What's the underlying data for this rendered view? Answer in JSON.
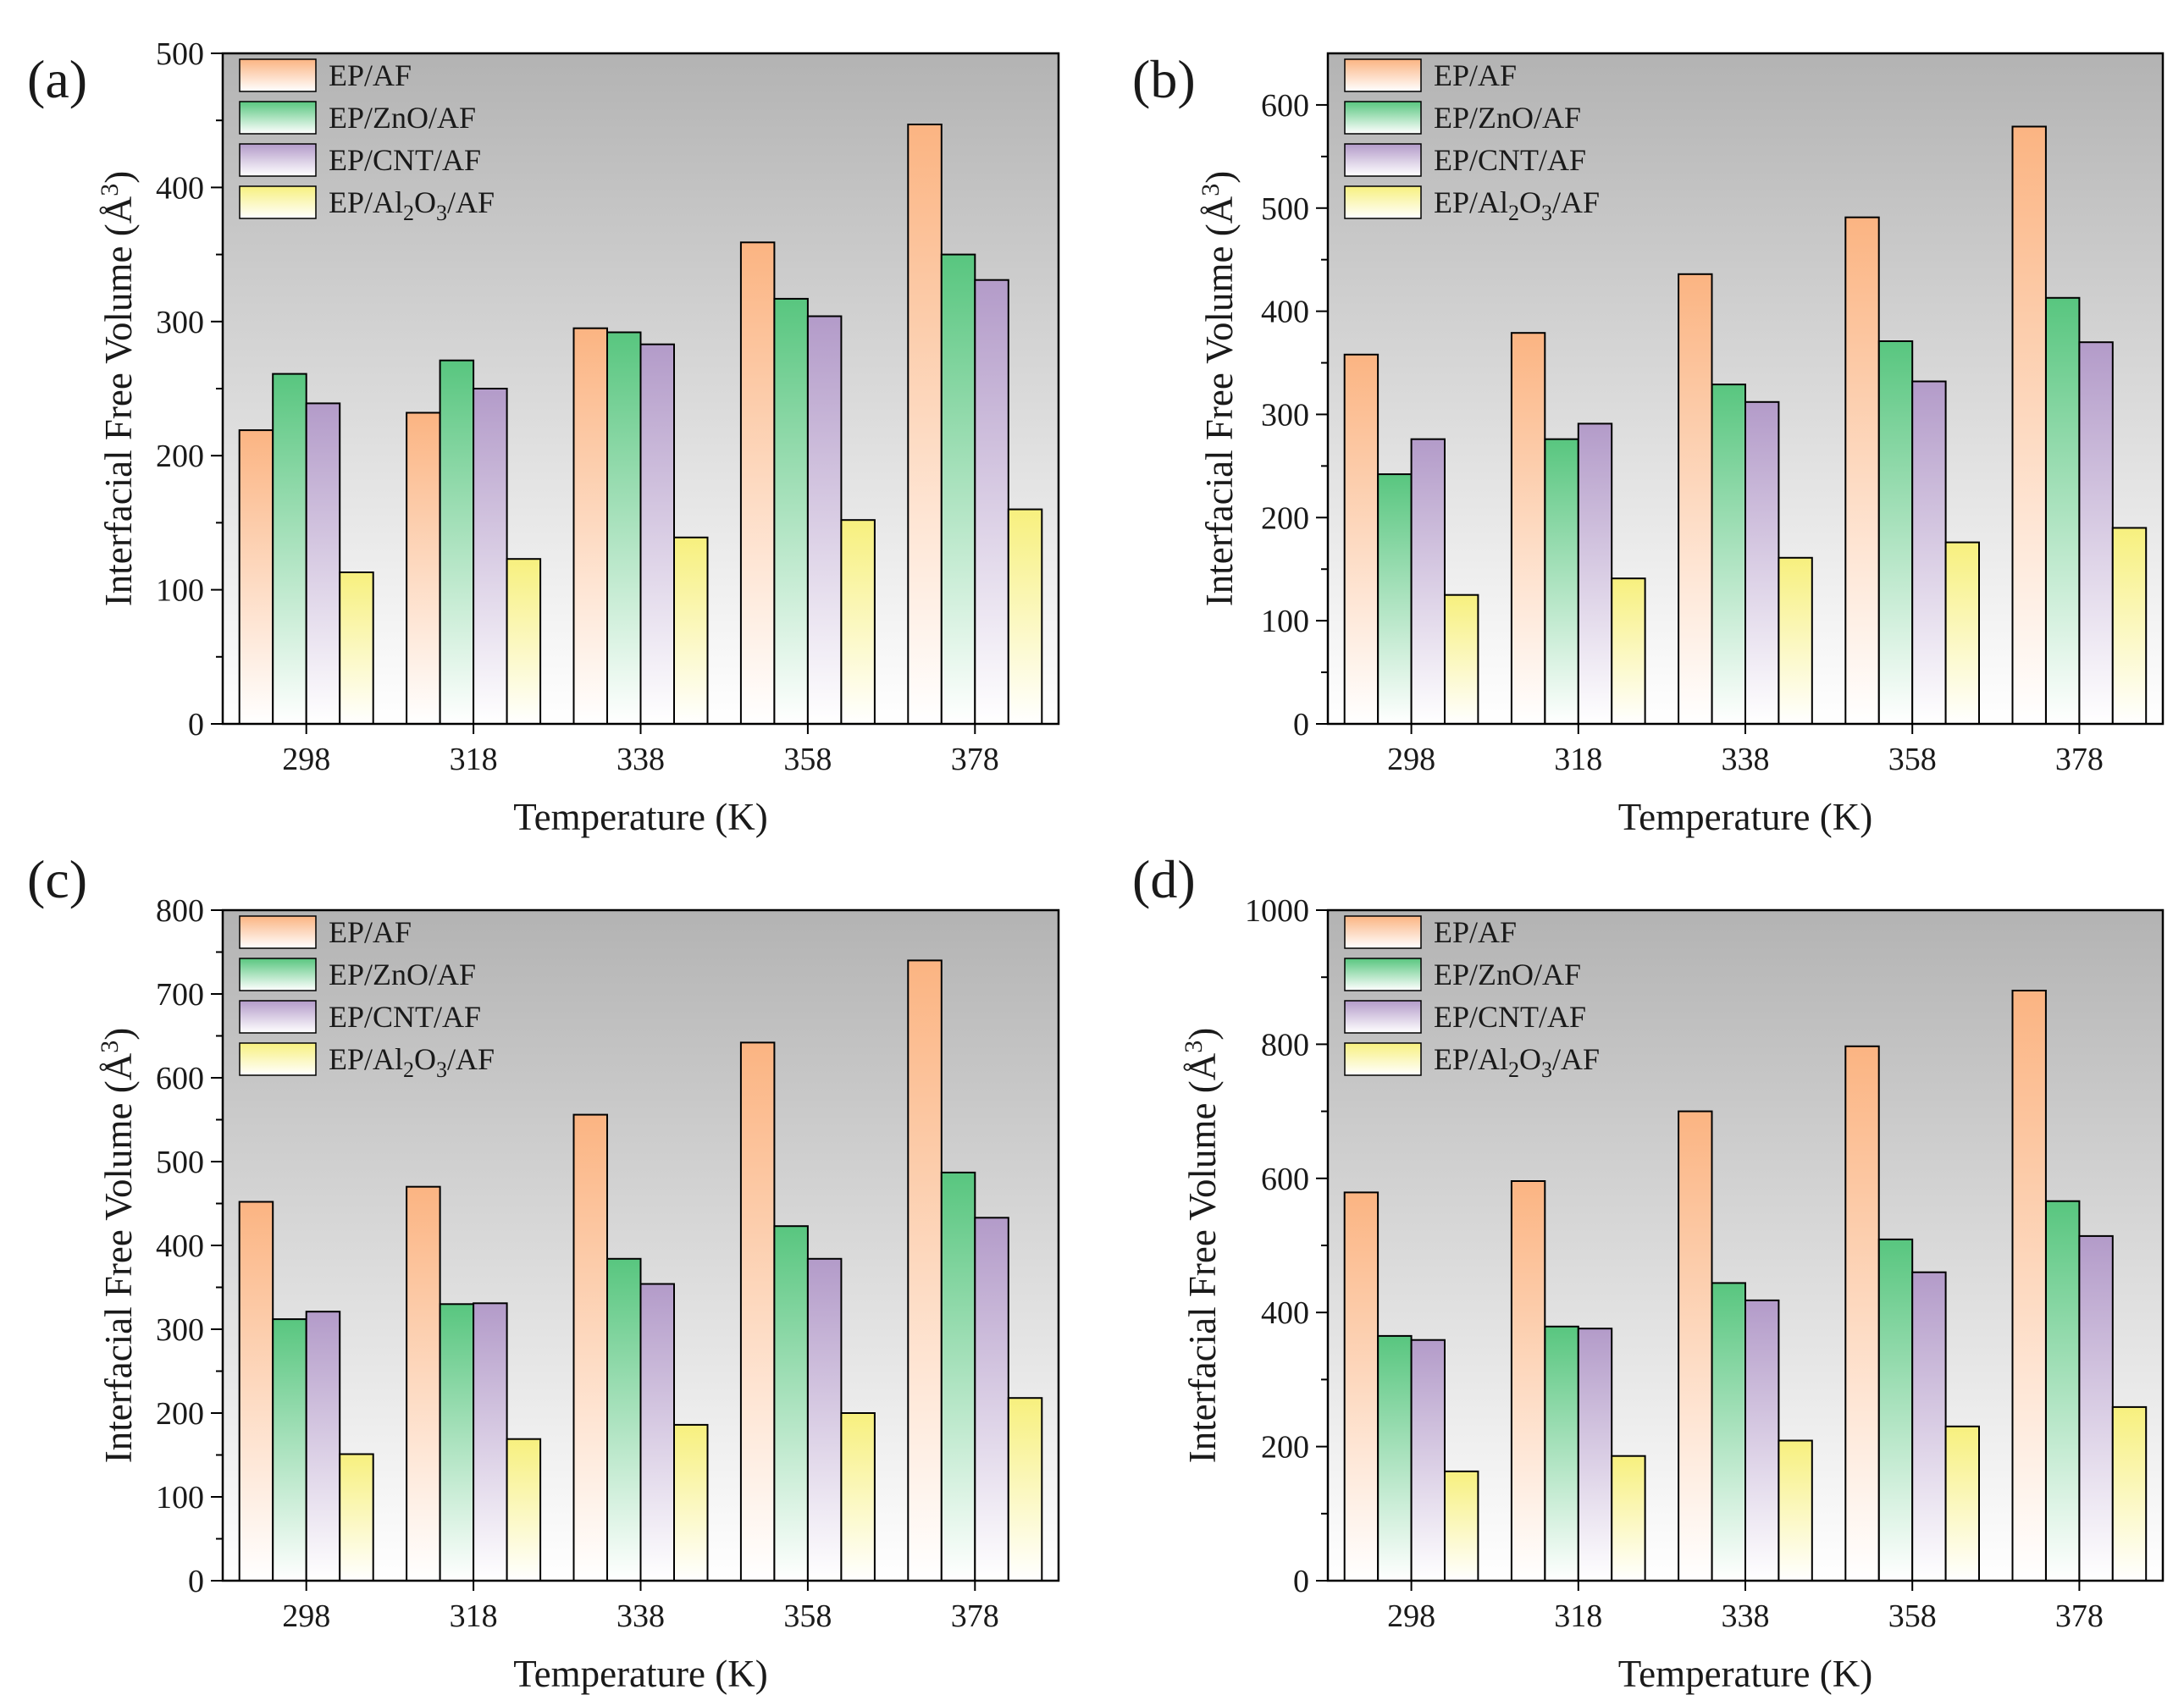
{
  "colors": {
    "EP/AF": "#fbb482",
    "EP/ZnO/AF": "#58c67f",
    "EP/CNT/AF": "#b39bc9",
    "EP/Al2O3/AF": "#f7f07e",
    "plot_bg_top": "#b3b3b3",
    "plot_bg_bottom": "#ffffff"
  },
  "chart_data": [
    {
      "panel": "(a)",
      "type": "bar",
      "xlabel": "Temperature (K)",
      "ylabel": "Interfacial Free Volume (Å3)",
      "ylabel_main": "Interfacial Free Volume (Å",
      "ylabel_sup": "3",
      "ylabel_close": ")",
      "categories": [
        "298",
        "318",
        "338",
        "358",
        "378"
      ],
      "ylim": [
        0,
        500
      ],
      "yticks": [
        "0",
        "100",
        "200",
        "300",
        "400",
        "500"
      ],
      "series": [
        {
          "name": "EP/AF",
          "values": [
            219,
            232,
            295,
            359,
            447
          ]
        },
        {
          "name": "EP/ZnO/AF",
          "values": [
            261,
            271,
            292,
            317,
            350
          ]
        },
        {
          "name": "EP/CNT/AF",
          "values": [
            239,
            250,
            283,
            304,
            331
          ]
        },
        {
          "name": "EP/Al2O3/AF",
          "values": [
            113,
            123,
            139,
            152,
            160
          ]
        }
      ]
    },
    {
      "panel": "(b)",
      "type": "bar",
      "xlabel": "Temperature (K)",
      "ylabel": "Interfacial Free Volume (Å3)",
      "ylabel_main": "Interfacial Free Volume (Å",
      "ylabel_sup": "3",
      "ylabel_close": ")",
      "categories": [
        "298",
        "318",
        "338",
        "358",
        "378"
      ],
      "ylim": [
        0,
        650
      ],
      "yticks": [
        "0",
        "100",
        "200",
        "300",
        "400",
        "500",
        "600"
      ],
      "series": [
        {
          "name": "EP/AF",
          "values": [
            358,
            379,
            436,
            491,
            579
          ]
        },
        {
          "name": "EP/ZnO/AF",
          "values": [
            242,
            276,
            329,
            371,
            413
          ]
        },
        {
          "name": "EP/CNT/AF",
          "values": [
            276,
            291,
            312,
            332,
            370
          ]
        },
        {
          "name": "EP/Al2O3/AF",
          "values": [
            125,
            141,
            161,
            176,
            190
          ]
        }
      ]
    },
    {
      "panel": "(c)",
      "type": "bar",
      "xlabel": "Temperature (K)",
      "ylabel": "Interfacial Free Volume (Å3)",
      "ylabel_main": "Interfacial Free Volume (Å",
      "ylabel_sup": "3",
      "ylabel_close": ")",
      "categories": [
        "298",
        "318",
        "338",
        "358",
        "378"
      ],
      "ylim": [
        0,
        800
      ],
      "yticks": [
        "0",
        "100",
        "200",
        "300",
        "400",
        "500",
        "600",
        "700",
        "800"
      ],
      "series": [
        {
          "name": "EP/AF",
          "values": [
            452,
            470,
            556,
            642,
            740
          ]
        },
        {
          "name": "EP/ZnO/AF",
          "values": [
            312,
            330,
            384,
            423,
            487
          ]
        },
        {
          "name": "EP/CNT/AF",
          "values": [
            321,
            331,
            354,
            384,
            433
          ]
        },
        {
          "name": "EP/Al2O3/AF",
          "values": [
            151,
            169,
            186,
            200,
            218
          ]
        }
      ]
    },
    {
      "panel": "(d)",
      "type": "bar",
      "xlabel": "Temperature (K)",
      "ylabel": "Interfacial Free Volume (Å3)",
      "ylabel_main": "Interfacial Free Volume (Å",
      "ylabel_sup": "3",
      "ylabel_close": ")",
      "categories": [
        "298",
        "318",
        "338",
        "358",
        "378"
      ],
      "ylim": [
        0,
        1000
      ],
      "yticks": [
        "0",
        "200",
        "400",
        "600",
        "800",
        "1000"
      ],
      "series": [
        {
          "name": "EP/AF",
          "values": [
            579,
            596,
            700,
            797,
            880
          ]
        },
        {
          "name": "EP/ZnO/AF",
          "values": [
            365,
            379,
            444,
            509,
            566
          ]
        },
        {
          "name": "EP/CNT/AF",
          "values": [
            359,
            376,
            418,
            460,
            514
          ]
        },
        {
          "name": "EP/Al2O3/AF",
          "values": [
            163,
            186,
            209,
            230,
            259
          ]
        }
      ]
    }
  ],
  "legend": [
    {
      "key": "EP/AF",
      "text": "EP/AF"
    },
    {
      "key": "EP/ZnO/AF",
      "text": "EP/ZnO/AF"
    },
    {
      "key": "EP/CNT/AF",
      "text": "EP/CNT/AF"
    },
    {
      "key": "EP/Al2O3/AF",
      "text_pre": "EP/Al",
      "sub1": "2",
      "mid": "O",
      "sub2": "3",
      "post": "/AF"
    }
  ]
}
